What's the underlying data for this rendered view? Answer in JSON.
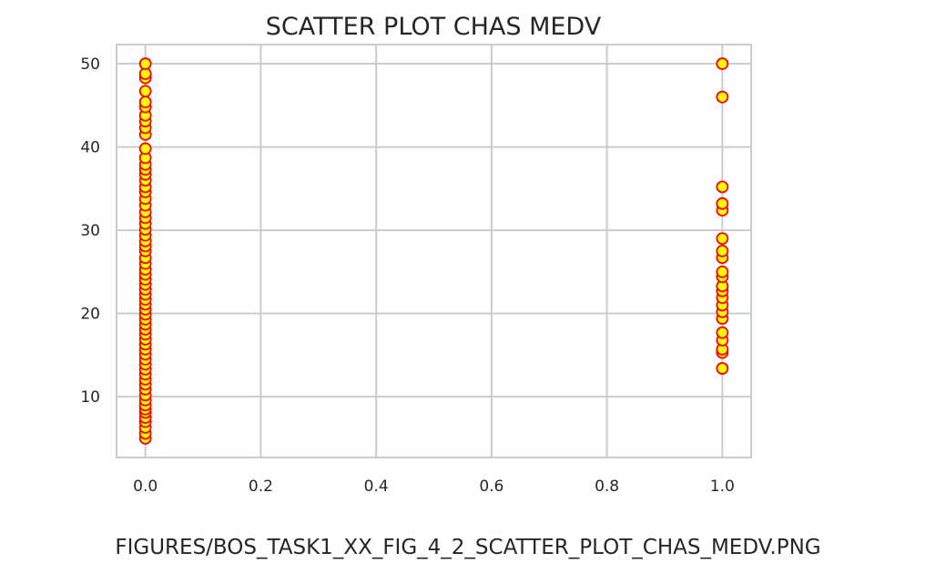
{
  "chart_data": {
    "type": "scatter",
    "title": "SCATTER PLOT CHAS MEDV",
    "xlabel": "",
    "ylabel": "",
    "xlim": [
      -0.05,
      1.05
    ],
    "ylim": [
      2.7,
      52.3
    ],
    "x_ticks": [
      "0.0",
      "0.2",
      "0.4",
      "0.6",
      "0.8",
      "1.0"
    ],
    "y_ticks": [
      "10",
      "20",
      "30",
      "40",
      "50"
    ],
    "grid": true,
    "marker_face_color": "#ffff00",
    "marker_edge_color": "#ff0000",
    "series": [
      {
        "points": [
          {
            "x": 0,
            "y": 5.0
          },
          {
            "x": 0,
            "y": 5.6
          },
          {
            "x": 0,
            "y": 6.3
          },
          {
            "x": 0,
            "y": 7.0
          },
          {
            "x": 0,
            "y": 7.5
          },
          {
            "x": 0,
            "y": 8.1
          },
          {
            "x": 0,
            "y": 8.5
          },
          {
            "x": 0,
            "y": 9.0
          },
          {
            "x": 0,
            "y": 9.6
          },
          {
            "x": 0,
            "y": 10.2
          },
          {
            "x": 0,
            "y": 10.9
          },
          {
            "x": 0,
            "y": 11.5
          },
          {
            "x": 0,
            "y": 12.1
          },
          {
            "x": 0,
            "y": 12.7
          },
          {
            "x": 0,
            "y": 13.3
          },
          {
            "x": 0,
            "y": 13.9
          },
          {
            "x": 0,
            "y": 14.5
          },
          {
            "x": 0,
            "y": 15.1
          },
          {
            "x": 0,
            "y": 15.7
          },
          {
            "x": 0,
            "y": 16.3
          },
          {
            "x": 0,
            "y": 16.9
          },
          {
            "x": 0,
            "y": 17.5
          },
          {
            "x": 0,
            "y": 18.1
          },
          {
            "x": 0,
            "y": 18.7
          },
          {
            "x": 0,
            "y": 19.3
          },
          {
            "x": 0,
            "y": 19.9
          },
          {
            "x": 0,
            "y": 20.5
          },
          {
            "x": 0,
            "y": 21.1
          },
          {
            "x": 0,
            "y": 21.7
          },
          {
            "x": 0,
            "y": 22.3
          },
          {
            "x": 0,
            "y": 22.9
          },
          {
            "x": 0,
            "y": 23.5
          },
          {
            "x": 0,
            "y": 24.1
          },
          {
            "x": 0,
            "y": 24.7
          },
          {
            "x": 0,
            "y": 25.3
          },
          {
            "x": 0,
            "y": 26.0
          },
          {
            "x": 0,
            "y": 26.7
          },
          {
            "x": 0,
            "y": 27.5
          },
          {
            "x": 0,
            "y": 28.1
          },
          {
            "x": 0,
            "y": 28.7
          },
          {
            "x": 0,
            "y": 29.4
          },
          {
            "x": 0,
            "y": 30.1
          },
          {
            "x": 0,
            "y": 30.8
          },
          {
            "x": 0,
            "y": 31.5
          },
          {
            "x": 0,
            "y": 32.2
          },
          {
            "x": 0,
            "y": 33.0
          },
          {
            "x": 0,
            "y": 33.8
          },
          {
            "x": 0,
            "y": 34.6
          },
          {
            "x": 0,
            "y": 35.2
          },
          {
            "x": 0,
            "y": 36.0
          },
          {
            "x": 0,
            "y": 36.7
          },
          {
            "x": 0,
            "y": 37.3
          },
          {
            "x": 0,
            "y": 37.9
          },
          {
            "x": 0,
            "y": 38.7
          },
          {
            "x": 0,
            "y": 39.8
          },
          {
            "x": 0,
            "y": 41.5
          },
          {
            "x": 0,
            "y": 42.3
          },
          {
            "x": 0,
            "y": 43.1
          },
          {
            "x": 0,
            "y": 43.8
          },
          {
            "x": 0,
            "y": 44.8
          },
          {
            "x": 0,
            "y": 45.4
          },
          {
            "x": 0,
            "y": 46.7
          },
          {
            "x": 0,
            "y": 48.3
          },
          {
            "x": 0,
            "y": 48.8
          },
          {
            "x": 0,
            "y": 50.0
          },
          {
            "x": 1,
            "y": 13.4
          },
          {
            "x": 1,
            "y": 15.3
          },
          {
            "x": 1,
            "y": 15.7
          },
          {
            "x": 1,
            "y": 16.8
          },
          {
            "x": 1,
            "y": 17.7
          },
          {
            "x": 1,
            "y": 19.4
          },
          {
            "x": 1,
            "y": 20.2
          },
          {
            "x": 1,
            "y": 21.0
          },
          {
            "x": 1,
            "y": 21.9
          },
          {
            "x": 1,
            "y": 22.7
          },
          {
            "x": 1,
            "y": 23.3
          },
          {
            "x": 1,
            "y": 24.4
          },
          {
            "x": 1,
            "y": 25.0
          },
          {
            "x": 1,
            "y": 26.7
          },
          {
            "x": 1,
            "y": 27.5
          },
          {
            "x": 1,
            "y": 29.0
          },
          {
            "x": 1,
            "y": 32.4
          },
          {
            "x": 1,
            "y": 33.2
          },
          {
            "x": 1,
            "y": 35.2
          },
          {
            "x": 1,
            "y": 46.0
          },
          {
            "x": 1,
            "y": 50.0
          }
        ]
      }
    ]
  },
  "caption": "FIGURES/BOS_TASK1_XX_FIG_4_2_SCATTER_PLOT_CHAS_MEDV.PNG"
}
